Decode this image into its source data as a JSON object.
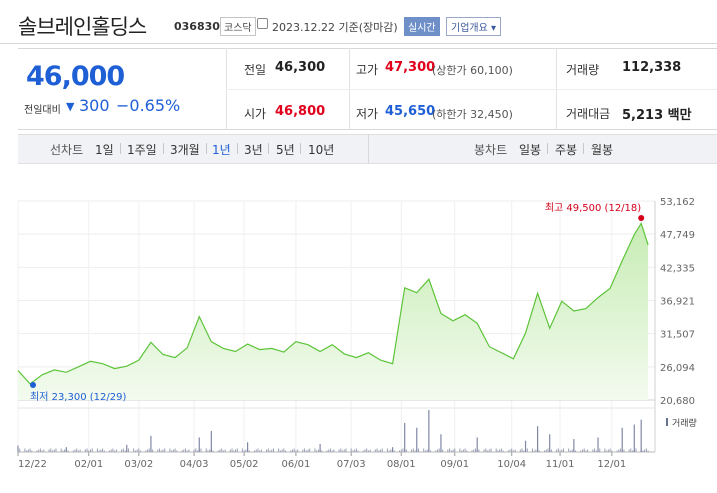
{
  "header": {
    "company_name": "솔브레인홀딩스",
    "stock_code": "036830",
    "market": "코스닥",
    "date_info": "2023.12.22 기준(장마감)",
    "live_button": "실시간",
    "info_button": "기업개요 ▾"
  },
  "quote": {
    "price": "46,000",
    "change_label": "전일대비",
    "change_arrow": "▼",
    "change_value": "300",
    "change_percent": "−0.65%",
    "prev_close_label": "전일",
    "prev_close": "46,300",
    "high_label": "고가",
    "high": "47,300",
    "upper_limit": "(상한가 60,100)",
    "volume_label": "거래량",
    "volume": "112,338",
    "open_label": "시가",
    "open": "46,800",
    "low_label": "저가",
    "low": "45,650",
    "lower_limit": "(하한가 32,450)",
    "amount_label": "거래대금",
    "amount": "5,213 백만",
    "colors": {
      "up": "#e0001b",
      "down": "#1e5fd6"
    }
  },
  "tabs": {
    "line_chart_label": "선차트",
    "periods": [
      "1일",
      "1주일",
      "3개월",
      "1년",
      "3년",
      "5년",
      "10년"
    ],
    "active_period": "1년",
    "candle_label": "봉차트",
    "candles": [
      "일봉",
      "주봉",
      "월봉"
    ]
  },
  "chart_data": {
    "type": "area",
    "title": "",
    "y_ticks": [
      "53,162",
      "47,749",
      "42,335",
      "36,921",
      "31,507",
      "26,094",
      "20,680"
    ],
    "ylim": [
      20680,
      53162
    ],
    "x_ticks": [
      "12/22",
      "02/01",
      "03/02",
      "04/03",
      "05/02",
      "06/01",
      "07/03",
      "08/01",
      "09/01",
      "10/04",
      "11/01",
      "12/01"
    ],
    "high_annotation": "최고 49,500 (12/18)",
    "low_annotation": "최저 23,300 (12/29)",
    "volume_label": "거래량",
    "grid": true,
    "line_color": "#5dc43a",
    "fill_color": "#dff5d4",
    "series": [
      {
        "x": [
          "22-12-22",
          "22-12-29",
          "23-01-05",
          "23-01-12",
          "23-01-19",
          "23-01-26",
          "23-02-02",
          "23-02-09",
          "23-02-16",
          "23-02-23",
          "23-03-02",
          "23-03-09",
          "23-03-16",
          "23-03-23",
          "23-03-30",
          "23-04-06",
          "23-04-13",
          "23-04-20",
          "23-04-27",
          "23-05-04",
          "23-05-11",
          "23-05-18",
          "23-05-25",
          "23-06-01",
          "23-06-08",
          "23-06-15",
          "23-06-22",
          "23-06-29",
          "23-07-06",
          "23-07-13",
          "23-07-20",
          "23-07-27",
          "23-08-03",
          "23-08-10",
          "23-08-17",
          "23-08-24",
          "23-08-31",
          "23-09-07",
          "23-09-14",
          "23-09-21",
          "23-10-05",
          "23-10-12",
          "23-10-19",
          "23-10-26",
          "23-11-02",
          "23-11-09",
          "23-11-16",
          "23-11-23",
          "23-11-30",
          "23-12-07",
          "23-12-14",
          "23-12-18",
          "23-12-22"
        ],
        "values": [
          25500,
          23300,
          24800,
          25600,
          25200,
          26100,
          27000,
          26600,
          25800,
          26200,
          27200,
          30100,
          28100,
          27600,
          29200,
          34300,
          30200,
          29100,
          28600,
          29800,
          28900,
          29100,
          28500,
          30200,
          29700,
          28600,
          29700,
          28200,
          27600,
          28400,
          27200,
          26600,
          39000,
          38200,
          40400,
          34800,
          33600,
          34600,
          33200,
          29400,
          27400,
          31600,
          38100,
          32400,
          36800,
          35200,
          35600,
          37400,
          38900,
          43400,
          47700,
          49500,
          46000
        ]
      }
    ],
    "volume": {
      "x": [
        "22-12-22",
        "23-01-19",
        "23-02-23",
        "23-03-09",
        "23-04-06",
        "23-04-13",
        "23-05-04",
        "23-06-15",
        "23-07-27",
        "23-08-03",
        "23-08-10",
        "23-08-17",
        "23-08-24",
        "23-09-14",
        "23-10-12",
        "23-10-19",
        "23-10-26",
        "23-11-09",
        "23-11-23",
        "23-12-07",
        "23-12-14",
        "23-12-18"
      ],
      "values": [
        8,
        6,
        9,
        20,
        18,
        26,
        12,
        10,
        6,
        36,
        30,
        52,
        22,
        18,
        14,
        32,
        22,
        16,
        18,
        30,
        34,
        40
      ]
    }
  }
}
